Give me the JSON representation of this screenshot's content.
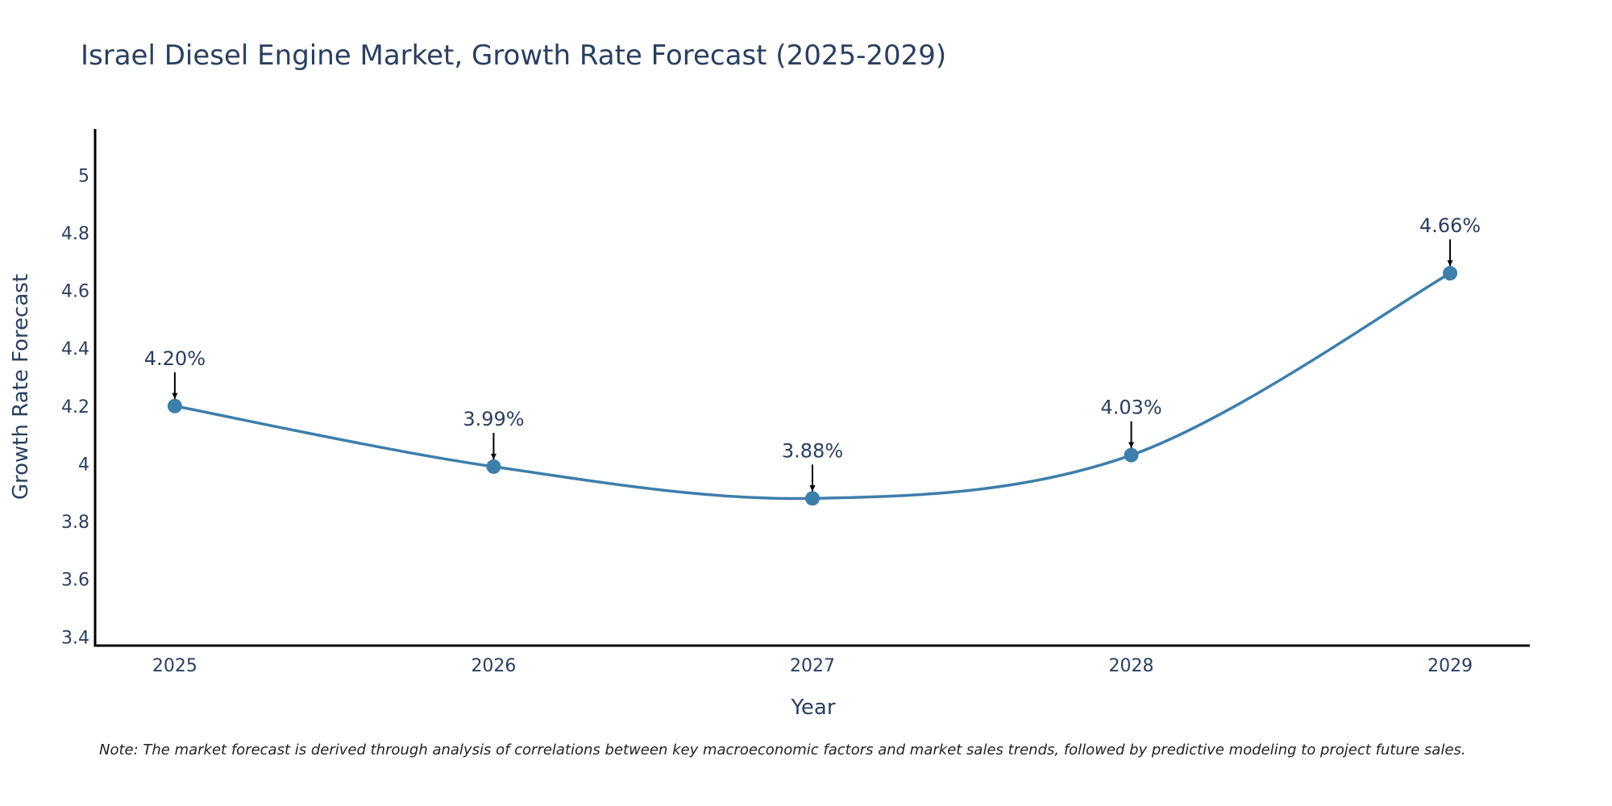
{
  "chart_data": {
    "type": "line",
    "title": "Israel Diesel Engine Market, Growth Rate Forecast (2025-2029)",
    "xlabel": "Year",
    "ylabel": "Growth Rate Forecast",
    "categories": [
      "2025",
      "2026",
      "2027",
      "2028",
      "2029"
    ],
    "values": [
      4.2,
      3.99,
      3.88,
      4.03,
      4.66
    ],
    "annotations": [
      "4.20%",
      "3.99%",
      "3.88%",
      "4.03%",
      "4.66%"
    ],
    "y_ticks": [
      "3.4",
      "3.6",
      "3.8",
      "4",
      "4.2",
      "4.4",
      "4.6",
      "4.8",
      "5"
    ],
    "y_tick_values": [
      3.4,
      3.6,
      3.8,
      4.0,
      4.2,
      4.4,
      4.6,
      4.8,
      5.0
    ],
    "ylim": [
      3.37,
      5.16
    ],
    "grid": false,
    "line_color": "#3d7eaa",
    "marker_color": "#3d7eaa",
    "arrow_color": "#000000"
  },
  "note": "Note: The market forecast is derived through analysis of correlations between key macroeconomic factors and market sales trends, followed by predictive modeling to project future sales."
}
